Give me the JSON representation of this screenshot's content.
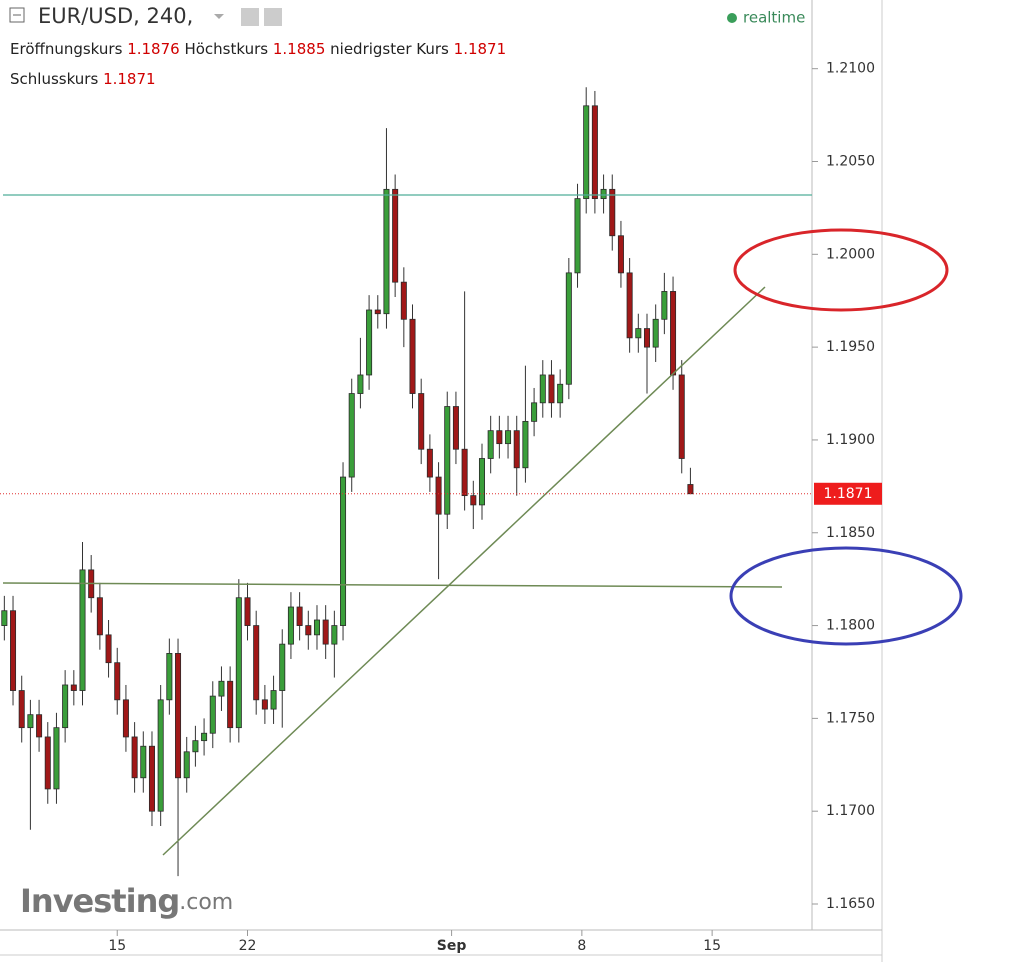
{
  "chart_data": {
    "type": "candlestick",
    "title": "EUR/USD, 240,",
    "status": "realtime",
    "ohlc_labels": [
      "Eröffnungskurs",
      "Höchstkurs",
      "niedrigster Kurs",
      "Schlusskurs"
    ],
    "watermark": [
      "Investing",
      ".com"
    ],
    "up_color": "#3a9e3a",
    "down_color": "#a01818",
    "x": [
      0,
      2,
      4,
      6,
      8,
      10,
      12,
      14,
      16,
      18,
      20,
      22,
      24,
      26,
      28,
      30,
      32,
      34,
      36,
      38,
      40,
      42,
      44,
      46,
      48,
      50,
      52,
      54,
      56,
      58,
      60,
      62,
      64,
      66,
      68,
      70,
      72,
      74,
      76,
      78,
      80,
      82,
      84,
      86,
      88,
      90,
      92,
      94,
      96,
      98,
      100,
      102,
      104,
      106,
      108,
      110,
      112,
      114,
      116,
      118,
      120,
      122,
      124,
      126,
      128,
      130,
      132,
      134,
      136,
      138,
      140,
      142,
      144,
      146,
      148,
      150,
      152,
      154,
      156,
      158
    ],
    "open": [
      1.18,
      1.1808,
      1.1765,
      1.1745,
      1.1752,
      1.174,
      1.1712,
      1.1745,
      1.1768,
      1.1765,
      1.183,
      1.1815,
      1.1795,
      1.178,
      1.176,
      1.174,
      1.1718,
      1.1735,
      1.17,
      1.176,
      1.1785,
      1.1718,
      1.1732,
      1.1738,
      1.1742,
      1.1762,
      1.177,
      1.1745,
      1.1815,
      1.18,
      1.176,
      1.1755,
      1.1765,
      1.179,
      1.181,
      1.18,
      1.1795,
      1.1803,
      1.179,
      1.18,
      1.188,
      1.1925,
      1.1935,
      1.197,
      1.1968,
      1.2035,
      1.1985,
      1.1965,
      1.1925,
      1.1895,
      1.188,
      1.186,
      1.1918,
      1.1895,
      1.187,
      1.1865,
      1.189,
      1.1905,
      1.1898,
      1.1905,
      1.1885,
      1.191,
      1.192,
      1.1935,
      1.192,
      1.193,
      1.199,
      1.203,
      1.208,
      1.203,
      1.2035,
      1.201,
      1.199,
      1.1955,
      1.196,
      1.195,
      1.1965,
      1.198,
      1.1935,
      1.1876
    ],
    "high": [
      1.1816,
      1.1816,
      1.1773,
      1.176,
      1.176,
      1.1748,
      1.1753,
      1.1776,
      1.1776,
      1.1845,
      1.1838,
      1.1823,
      1.1803,
      1.1788,
      1.1768,
      1.1748,
      1.1743,
      1.1743,
      1.1768,
      1.1793,
      1.1793,
      1.174,
      1.1746,
      1.175,
      1.177,
      1.1778,
      1.1778,
      1.1825,
      1.1823,
      1.1808,
      1.1768,
      1.1773,
      1.1798,
      1.1818,
      1.1818,
      1.1808,
      1.1811,
      1.1811,
      1.1808,
      1.1888,
      1.1933,
      1.1955,
      1.1978,
      1.1978,
      1.2068,
      1.2043,
      1.1993,
      1.1973,
      1.1933,
      1.1903,
      1.1888,
      1.1926,
      1.1926,
      1.198,
      1.1878,
      1.1898,
      1.1913,
      1.1913,
      1.1913,
      1.1913,
      1.194,
      1.1928,
      1.1943,
      1.1943,
      1.1938,
      1.1998,
      1.2038,
      1.209,
      1.2088,
      1.2043,
      1.2043,
      1.2018,
      1.1998,
      1.1968,
      1.1968,
      1.1973,
      1.199,
      1.1988,
      1.1943,
      1.1885
    ],
    "low": [
      1.1792,
      1.1757,
      1.1737,
      1.169,
      1.1732,
      1.1704,
      1.1704,
      1.1737,
      1.1757,
      1.1757,
      1.1807,
      1.1787,
      1.1772,
      1.1752,
      1.1732,
      1.171,
      1.171,
      1.1692,
      1.1692,
      1.1752,
      1.1665,
      1.171,
      1.1724,
      1.173,
      1.1734,
      1.1754,
      1.1737,
      1.1737,
      1.1792,
      1.1752,
      1.1747,
      1.1747,
      1.1745,
      1.1782,
      1.1792,
      1.1787,
      1.1787,
      1.1782,
      1.1772,
      1.1792,
      1.1872,
      1.1917,
      1.1927,
      1.196,
      1.196,
      1.1977,
      1.195,
      1.1917,
      1.1887,
      1.1872,
      1.1825,
      1.1852,
      1.1887,
      1.1862,
      1.1852,
      1.1857,
      1.1882,
      1.189,
      1.189,
      1.187,
      1.1877,
      1.1902,
      1.1912,
      1.1912,
      1.1912,
      1.1922,
      1.1982,
      1.2022,
      1.2022,
      1.2022,
      1.2002,
      1.1982,
      1.1947,
      1.1947,
      1.1925,
      1.1942,
      1.1957,
      1.1927,
      1.1882,
      1.1871
    ],
    "close": [
      1.1808,
      1.1765,
      1.1745,
      1.1752,
      1.174,
      1.1712,
      1.1745,
      1.1768,
      1.1765,
      1.183,
      1.1815,
      1.1795,
      1.178,
      1.176,
      1.174,
      1.1718,
      1.1735,
      1.17,
      1.176,
      1.1785,
      1.1718,
      1.1732,
      1.1738,
      1.1742,
      1.1762,
      1.177,
      1.1745,
      1.1815,
      1.18,
      1.176,
      1.1755,
      1.1765,
      1.179,
      1.181,
      1.18,
      1.1795,
      1.1803,
      1.179,
      1.18,
      1.188,
      1.1925,
      1.1935,
      1.197,
      1.1968,
      1.2035,
      1.1985,
      1.1965,
      1.1925,
      1.1895,
      1.188,
      1.186,
      1.1918,
      1.1895,
      1.187,
      1.1865,
      1.189,
      1.1905,
      1.1898,
      1.1905,
      1.1885,
      1.191,
      1.192,
      1.1935,
      1.192,
      1.193,
      1.199,
      1.203,
      1.208,
      1.203,
      1.2035,
      1.201,
      1.199,
      1.1955,
      1.196,
      1.195,
      1.1965,
      1.198,
      1.1935,
      1.189,
      1.1871
    ],
    "xlim": [
      -1,
      186
    ],
    "xticks": [
      {
        "value": 26,
        "label": "15"
      },
      {
        "value": 56,
        "label": "22"
      },
      {
        "value": 103,
        "label": "Sep"
      },
      {
        "value": 133,
        "label": "8"
      },
      {
        "value": 163,
        "label": "15"
      }
    ],
    "ylim": [
      1.1636,
      1.2137
    ],
    "yticks": [
      {
        "value": 1.165,
        "label": "1.1650"
      },
      {
        "value": 1.17,
        "label": "1.1700"
      },
      {
        "value": 1.175,
        "label": "1.1750"
      },
      {
        "value": 1.18,
        "label": "1.1800"
      },
      {
        "value": 1.185,
        "label": "1.1850"
      },
      {
        "value": 1.19,
        "label": "1.1900"
      },
      {
        "value": 1.195,
        "label": "1.1950"
      },
      {
        "value": 1.2,
        "label": "1.2000"
      },
      {
        "value": 1.205,
        "label": "1.2050"
      },
      {
        "value": 1.21,
        "label": "1.2100"
      }
    ]
  }
}
